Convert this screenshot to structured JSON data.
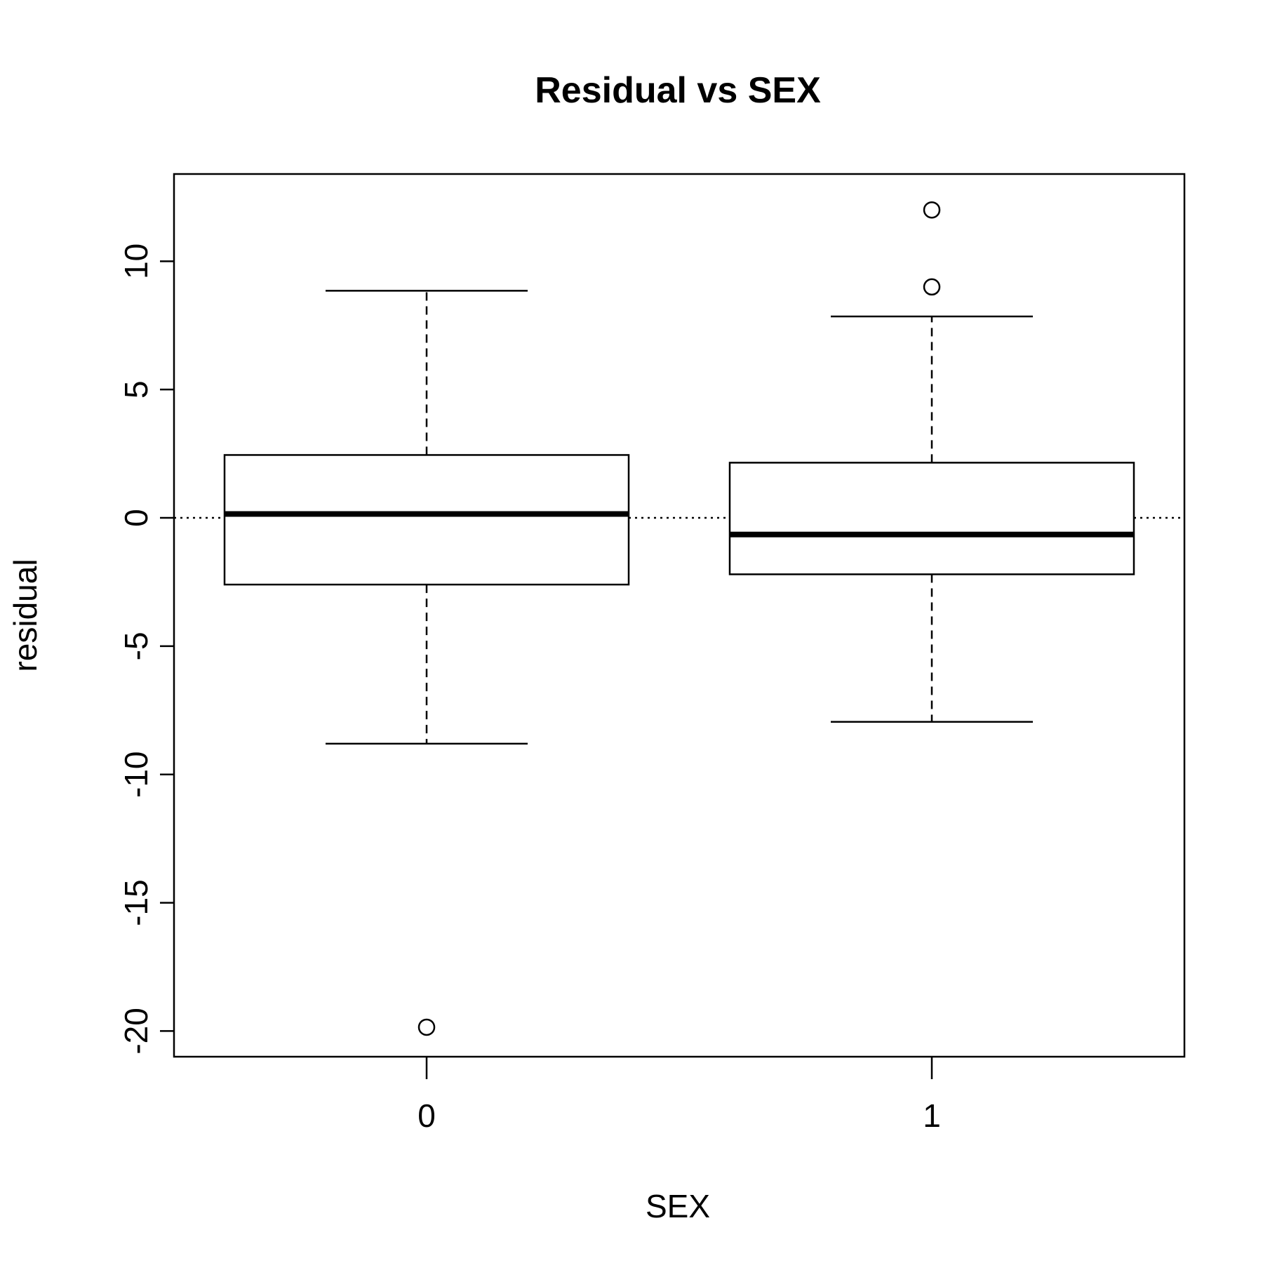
{
  "chart_data": {
    "type": "box",
    "title": "Residual vs SEX",
    "xlabel": "SEX",
    "ylabel": "residual",
    "categories": [
      "0",
      "1"
    ],
    "ylim": [
      -21,
      13.4
    ],
    "yticks": [
      -20,
      -15,
      -10,
      -5,
      0,
      5,
      10
    ],
    "yticklabels": [
      "-20",
      "-15",
      "-10",
      "-5",
      "0",
      "5",
      "10"
    ],
    "boxes": [
      {
        "category": "0",
        "whisker_low": -8.8,
        "q1": -2.6,
        "median": 0.15,
        "q3": 2.45,
        "whisker_high": 8.85,
        "outliers": [
          -19.85
        ]
      },
      {
        "category": "1",
        "whisker_low": -7.95,
        "q1": -2.2,
        "median": -0.65,
        "q3": 2.15,
        "whisker_high": 7.85,
        "outliers": [
          9.0,
          12.0
        ]
      }
    ],
    "reference_line": {
      "y": 0,
      "style": "dotted"
    },
    "grid": false,
    "legend": "none"
  }
}
